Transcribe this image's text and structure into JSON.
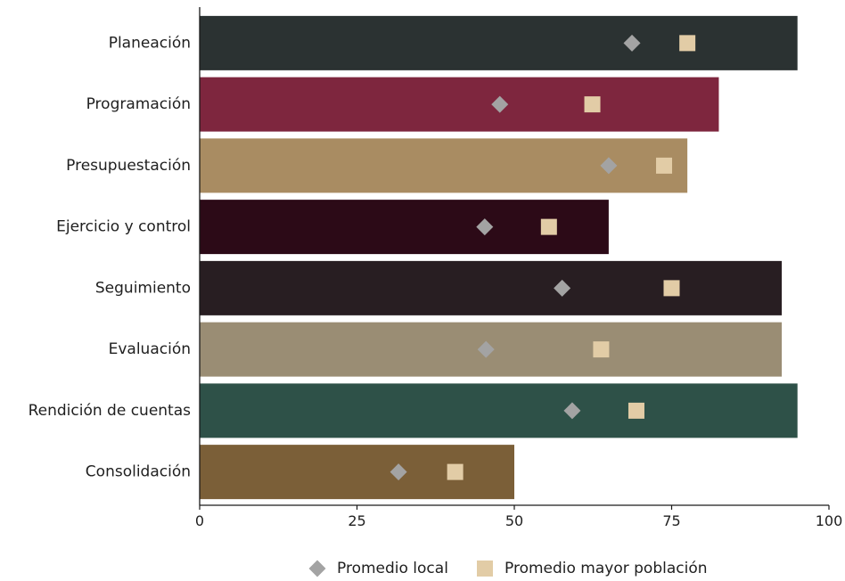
{
  "chart_data": {
    "type": "bar",
    "orientation": "horizontal",
    "title": "",
    "xlabel": "",
    "ylabel": "",
    "xlim": [
      0,
      100
    ],
    "x_ticks": [
      0,
      25,
      50,
      75,
      100
    ],
    "grid": false,
    "legend_placement": "bottom",
    "categories": [
      "Planeación",
      "Programación",
      "Presupuestación",
      "Ejercicio y control",
      "Seguimiento",
      "Evaluación",
      "Rendición de cuentas",
      "Consolidación"
    ],
    "values": [
      95,
      82.5,
      77.5,
      65,
      92.5,
      92.5,
      95,
      50
    ],
    "bar_colors": [
      "#2b3232",
      "#7e263e",
      "#a98c62",
      "#2c0a17",
      "#281e22",
      "#9a8d74",
      "#2e5148",
      "#7b5f38"
    ],
    "series": [
      {
        "name": "Promedio local",
        "marker": "diamond",
        "color": "#a3a3a3",
        "values": [
          68.7,
          47.7,
          65.0,
          45.3,
          57.6,
          45.5,
          59.2,
          31.6
        ]
      },
      {
        "name": "Promedio mayor población",
        "marker": "square",
        "color": "#e2cca6",
        "values": [
          77.5,
          62.4,
          73.8,
          55.5,
          75.0,
          63.8,
          69.4,
          40.6
        ]
      }
    ]
  }
}
